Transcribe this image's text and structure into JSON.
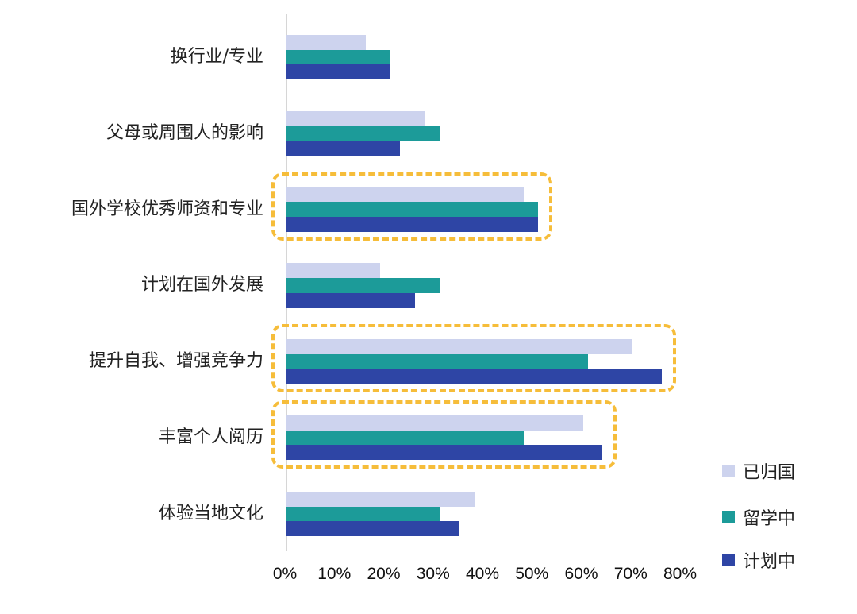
{
  "chart_data": {
    "type": "bar",
    "orientation": "horizontal",
    "title": "",
    "xlabel": "",
    "ylabel": "",
    "xlim": [
      0,
      80
    ],
    "x_ticks": [
      "0%",
      "10%",
      "20%",
      "30%",
      "40%",
      "50%",
      "60%",
      "70%",
      "80%"
    ],
    "grid": false,
    "legend_position": "bottom-right",
    "categories": [
      "换行业/专业",
      "父母或周围人的影响",
      "国外学校优秀师资和专业",
      "计划在国外发展",
      "提升自我、增强竞争力",
      "丰富个人阅历",
      "体验当地文化"
    ],
    "series": [
      {
        "name": "已归国",
        "color": "#cdd3ee",
        "values": [
          16,
          28,
          48,
          19,
          70,
          60,
          38
        ]
      },
      {
        "name": "留学中",
        "color": "#1c9b99",
        "values": [
          21,
          31,
          51,
          31,
          61,
          48,
          31
        ]
      },
      {
        "name": "计划中",
        "color": "#2e45a5",
        "values": [
          21,
          23,
          51,
          26,
          76,
          64,
          35
        ]
      }
    ],
    "highlighted_categories": [
      "国外学校优秀师资和专业",
      "提升自我、增强竞争力",
      "丰富个人阅历"
    ],
    "highlight_color": "#f6bd3a"
  },
  "legend": [
    {
      "label": "已归国",
      "color": "#cdd3ee"
    },
    {
      "label": "留学中",
      "color": "#1c9b99"
    },
    {
      "label": "计划中",
      "color": "#2e45a5"
    }
  ]
}
